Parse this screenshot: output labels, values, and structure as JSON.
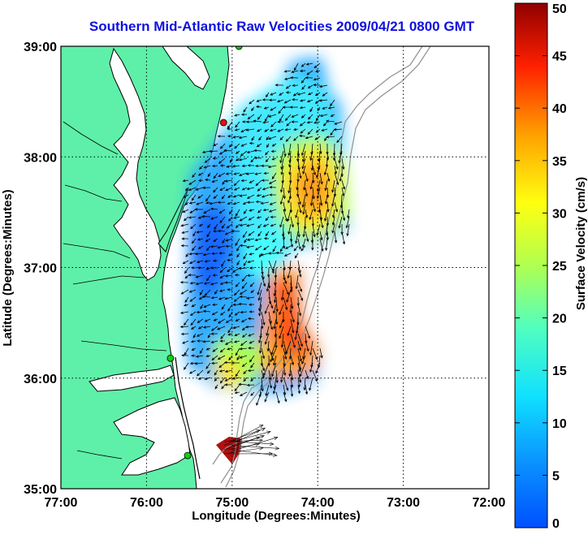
{
  "title": "Southern Mid-Atlantic Raw Velocities 2009/04/21 0800 GMT",
  "map": {
    "xlabel": "Longitude (Degrees:Minutes)",
    "ylabel": "Latitude (Degrees:Minutes)",
    "lon_ticks": [
      "77:00",
      "76:00",
      "75:00",
      "74:00",
      "73:00",
      "72:00"
    ],
    "lat_ticks": [
      "39:00",
      "38:00",
      "37:00",
      "36:00",
      "35:00"
    ],
    "lon_range": [
      -77,
      -72
    ],
    "lat_range": [
      35,
      39
    ],
    "grid": "dotted",
    "land_color": "#5ef0a8",
    "stations": [
      {
        "lon": -75.1,
        "lat": 38.31,
        "color": "#e81010"
      },
      {
        "lon": -74.92,
        "lat": 39.0,
        "color": "#10d010"
      },
      {
        "lon": -75.72,
        "lat": 36.18,
        "color": "#10d010"
      },
      {
        "lon": -75.52,
        "lat": 35.3,
        "color": "#10d010"
      }
    ]
  },
  "colorbar": {
    "label": "Surface Velocity (cm/s)",
    "ticks": [
      "0",
      "5",
      "10",
      "15",
      "20",
      "25",
      "30",
      "35",
      "40",
      "45",
      "50"
    ],
    "range": [
      0,
      50
    ],
    "colormap": "jet"
  }
}
